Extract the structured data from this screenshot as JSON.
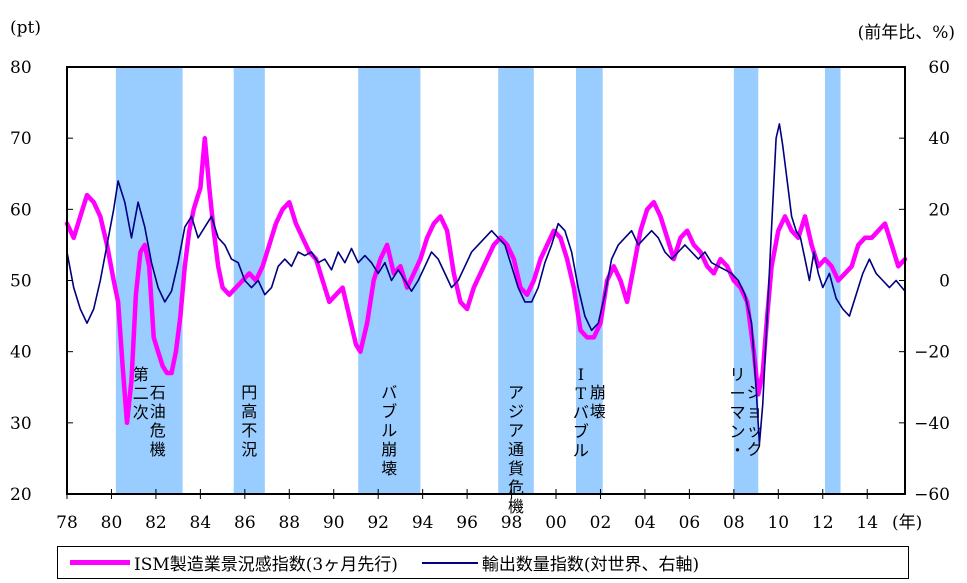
{
  "chart_data": {
    "type": "line",
    "left_unit": "(pt)",
    "right_unit": "(前年比、%)",
    "x_axis": {
      "min": 1978,
      "max": 2015.7,
      "ticks": [
        1978,
        1980,
        1982,
        1984,
        1986,
        1988,
        1990,
        1992,
        1994,
        1996,
        1998,
        2000,
        2002,
        2004,
        2006,
        2008,
        2010,
        2012,
        2014
      ],
      "tick_labels": [
        "78",
        "80",
        "82",
        "84",
        "86",
        "88",
        "90",
        "92",
        "94",
        "96",
        "98",
        "00",
        "02",
        "04",
        "06",
        "08",
        "10",
        "12",
        "14"
      ],
      "unit_label": "(年)"
    },
    "y_left": {
      "min": 20,
      "max": 80,
      "ticks": [
        20,
        30,
        40,
        50,
        60,
        70,
        80
      ],
      "tick_labels": [
        "20",
        "30",
        "40",
        "50",
        "60",
        "70",
        "80"
      ]
    },
    "y_right": {
      "min": -60,
      "max": 60,
      "ticks": [
        -60,
        -40,
        -20,
        0,
        20,
        40,
        60
      ],
      "tick_labels": [
        "−60",
        "−40",
        "−20",
        "0",
        "20",
        "40",
        "60"
      ]
    },
    "recessions": [
      {
        "start": 1980.2,
        "end": 1983.2,
        "label_lines": [
          "石油危機",
          "第二次"
        ]
      },
      {
        "start": 1985.5,
        "end": 1986.9,
        "label_lines": [
          "円高不況"
        ]
      },
      {
        "start": 1991.1,
        "end": 1993.9,
        "label_lines": [
          "バブル崩壊"
        ]
      },
      {
        "start": 1997.4,
        "end": 1999.0,
        "label_lines": [
          "アジア通貨危機"
        ]
      },
      {
        "start": 2000.9,
        "end": 2002.1,
        "label_lines": [
          "崩壊",
          "ITバブル"
        ]
      },
      {
        "start": 2008.0,
        "end": 2009.1,
        "label_lines": [
          "ショック",
          "リーマン・"
        ]
      },
      {
        "start": 2012.1,
        "end": 2012.8,
        "label_lines": []
      }
    ],
    "series": [
      {
        "name": "ISM製造業景況感指数(3ヶ月先行)",
        "axis": "left",
        "color": "#ff00ff",
        "points": [
          [
            1978.0,
            58
          ],
          [
            1978.3,
            56
          ],
          [
            1978.6,
            59
          ],
          [
            1978.9,
            62
          ],
          [
            1979.2,
            61
          ],
          [
            1979.5,
            59
          ],
          [
            1979.8,
            55
          ],
          [
            1980.1,
            50
          ],
          [
            1980.3,
            47
          ],
          [
            1980.5,
            38
          ],
          [
            1980.7,
            30
          ],
          [
            1980.9,
            36
          ],
          [
            1981.1,
            48
          ],
          [
            1981.3,
            54
          ],
          [
            1981.5,
            55
          ],
          [
            1981.7,
            52
          ],
          [
            1981.9,
            42
          ],
          [
            1982.1,
            40
          ],
          [
            1982.3,
            38
          ],
          [
            1982.5,
            37
          ],
          [
            1982.7,
            37
          ],
          [
            1982.9,
            40
          ],
          [
            1983.1,
            45
          ],
          [
            1983.3,
            52
          ],
          [
            1983.5,
            57
          ],
          [
            1983.7,
            60
          ],
          [
            1983.9,
            62
          ],
          [
            1984.0,
            63
          ],
          [
            1984.2,
            70
          ],
          [
            1984.4,
            63
          ],
          [
            1984.6,
            57
          ],
          [
            1984.8,
            52
          ],
          [
            1985.0,
            49
          ],
          [
            1985.3,
            48
          ],
          [
            1985.6,
            49
          ],
          [
            1985.9,
            50
          ],
          [
            1986.2,
            51
          ],
          [
            1986.5,
            50
          ],
          [
            1986.8,
            52
          ],
          [
            1987.1,
            55
          ],
          [
            1987.4,
            58
          ],
          [
            1987.7,
            60
          ],
          [
            1988.0,
            61
          ],
          [
            1988.3,
            58
          ],
          [
            1988.6,
            56
          ],
          [
            1988.9,
            54
          ],
          [
            1989.2,
            53
          ],
          [
            1989.5,
            50
          ],
          [
            1989.8,
            47
          ],
          [
            1990.1,
            48
          ],
          [
            1990.4,
            49
          ],
          [
            1990.7,
            45
          ],
          [
            1991.0,
            41
          ],
          [
            1991.2,
            40
          ],
          [
            1991.5,
            44
          ],
          [
            1991.8,
            50
          ],
          [
            1992.1,
            53
          ],
          [
            1992.4,
            55
          ],
          [
            1992.7,
            51
          ],
          [
            1993.0,
            52
          ],
          [
            1993.3,
            49
          ],
          [
            1993.6,
            51
          ],
          [
            1993.9,
            53
          ],
          [
            1994.2,
            56
          ],
          [
            1994.5,
            58
          ],
          [
            1994.8,
            59
          ],
          [
            1995.1,
            57
          ],
          [
            1995.4,
            51
          ],
          [
            1995.7,
            47
          ],
          [
            1996.0,
            46
          ],
          [
            1996.3,
            49
          ],
          [
            1996.6,
            51
          ],
          [
            1996.9,
            53
          ],
          [
            1997.2,
            55
          ],
          [
            1997.5,
            56
          ],
          [
            1997.8,
            55
          ],
          [
            1998.1,
            53
          ],
          [
            1998.4,
            49
          ],
          [
            1998.7,
            48
          ],
          [
            1999.0,
            50
          ],
          [
            1999.3,
            53
          ],
          [
            1999.6,
            55
          ],
          [
            1999.9,
            57
          ],
          [
            2000.2,
            56
          ],
          [
            2000.5,
            53
          ],
          [
            2000.8,
            49
          ],
          [
            2001.1,
            43
          ],
          [
            2001.4,
            42
          ],
          [
            2001.7,
            42
          ],
          [
            2002.0,
            44
          ],
          [
            2002.3,
            50
          ],
          [
            2002.6,
            52
          ],
          [
            2002.9,
            50
          ],
          [
            2003.2,
            47
          ],
          [
            2003.5,
            52
          ],
          [
            2003.8,
            57
          ],
          [
            2004.1,
            60
          ],
          [
            2004.4,
            61
          ],
          [
            2004.7,
            59
          ],
          [
            2005.0,
            56
          ],
          [
            2005.3,
            53
          ],
          [
            2005.6,
            56
          ],
          [
            2005.9,
            57
          ],
          [
            2006.2,
            55
          ],
          [
            2006.5,
            54
          ],
          [
            2006.8,
            52
          ],
          [
            2007.1,
            51
          ],
          [
            2007.4,
            53
          ],
          [
            2007.7,
            52
          ],
          [
            2008.0,
            50
          ],
          [
            2008.3,
            49
          ],
          [
            2008.6,
            47
          ],
          [
            2008.9,
            40
          ],
          [
            2009.1,
            34
          ],
          [
            2009.3,
            37
          ],
          [
            2009.5,
            45
          ],
          [
            2009.7,
            52
          ],
          [
            2010.0,
            57
          ],
          [
            2010.3,
            59
          ],
          [
            2010.6,
            57
          ],
          [
            2010.9,
            56
          ],
          [
            2011.2,
            59
          ],
          [
            2011.5,
            55
          ],
          [
            2011.8,
            52
          ],
          [
            2012.1,
            53
          ],
          [
            2012.4,
            52
          ],
          [
            2012.7,
            50
          ],
          [
            2013.0,
            51
          ],
          [
            2013.3,
            52
          ],
          [
            2013.6,
            55
          ],
          [
            2013.9,
            56
          ],
          [
            2014.2,
            56
          ],
          [
            2014.5,
            57
          ],
          [
            2014.8,
            58
          ],
          [
            2015.1,
            55
          ],
          [
            2015.4,
            52
          ],
          [
            2015.7,
            53
          ]
        ]
      },
      {
        "name": "輸出数量指数(対世界、右軸)",
        "axis": "right",
        "color": "#000080",
        "points": [
          [
            1978.0,
            8
          ],
          [
            1978.3,
            -2
          ],
          [
            1978.6,
            -8
          ],
          [
            1978.9,
            -12
          ],
          [
            1979.2,
            -8
          ],
          [
            1979.5,
            0
          ],
          [
            1979.8,
            10
          ],
          [
            1980.1,
            20
          ],
          [
            1980.3,
            28
          ],
          [
            1980.6,
            22
          ],
          [
            1980.9,
            12
          ],
          [
            1981.2,
            22
          ],
          [
            1981.5,
            15
          ],
          [
            1981.8,
            5
          ],
          [
            1982.1,
            -2
          ],
          [
            1982.4,
            -6
          ],
          [
            1982.7,
            -3
          ],
          [
            1983.0,
            5
          ],
          [
            1983.3,
            15
          ],
          [
            1983.6,
            18
          ],
          [
            1983.9,
            12
          ],
          [
            1984.2,
            15
          ],
          [
            1984.5,
            18
          ],
          [
            1984.8,
            12
          ],
          [
            1985.1,
            10
          ],
          [
            1985.4,
            6
          ],
          [
            1985.7,
            5
          ],
          [
            1986.0,
            0
          ],
          [
            1986.3,
            -2
          ],
          [
            1986.6,
            0
          ],
          [
            1986.9,
            -4
          ],
          [
            1987.2,
            -2
          ],
          [
            1987.5,
            4
          ],
          [
            1987.8,
            6
          ],
          [
            1988.1,
            4
          ],
          [
            1988.4,
            8
          ],
          [
            1988.7,
            7
          ],
          [
            1989.0,
            8
          ],
          [
            1989.3,
            5
          ],
          [
            1989.6,
            6
          ],
          [
            1989.9,
            3
          ],
          [
            1990.2,
            8
          ],
          [
            1990.5,
            5
          ],
          [
            1990.8,
            9
          ],
          [
            1991.1,
            5
          ],
          [
            1991.4,
            7
          ],
          [
            1991.7,
            5
          ],
          [
            1992.0,
            2
          ],
          [
            1992.3,
            5
          ],
          [
            1992.6,
            0
          ],
          [
            1992.9,
            3
          ],
          [
            1993.2,
            0
          ],
          [
            1993.5,
            -3
          ],
          [
            1993.8,
            0
          ],
          [
            1994.1,
            4
          ],
          [
            1994.4,
            8
          ],
          [
            1994.7,
            6
          ],
          [
            1995.0,
            2
          ],
          [
            1995.3,
            -2
          ],
          [
            1995.6,
            0
          ],
          [
            1995.9,
            4
          ],
          [
            1996.2,
            8
          ],
          [
            1996.5,
            10
          ],
          [
            1996.8,
            12
          ],
          [
            1997.1,
            14
          ],
          [
            1997.4,
            12
          ],
          [
            1997.7,
            10
          ],
          [
            1998.0,
            4
          ],
          [
            1998.3,
            -2
          ],
          [
            1998.6,
            -6
          ],
          [
            1998.9,
            -6
          ],
          [
            1999.2,
            -2
          ],
          [
            1999.5,
            5
          ],
          [
            1999.8,
            10
          ],
          [
            2000.1,
            16
          ],
          [
            2000.4,
            14
          ],
          [
            2000.7,
            8
          ],
          [
            2001.0,
            -2
          ],
          [
            2001.3,
            -10
          ],
          [
            2001.6,
            -14
          ],
          [
            2001.9,
            -12
          ],
          [
            2002.2,
            -4
          ],
          [
            2002.5,
            6
          ],
          [
            2002.8,
            10
          ],
          [
            2003.1,
            12
          ],
          [
            2003.4,
            14
          ],
          [
            2003.7,
            10
          ],
          [
            2004.0,
            12
          ],
          [
            2004.3,
            14
          ],
          [
            2004.6,
            12
          ],
          [
            2004.9,
            8
          ],
          [
            2005.2,
            6
          ],
          [
            2005.5,
            8
          ],
          [
            2005.8,
            10
          ],
          [
            2006.1,
            8
          ],
          [
            2006.4,
            6
          ],
          [
            2006.7,
            8
          ],
          [
            2007.0,
            5
          ],
          [
            2007.3,
            4
          ],
          [
            2007.6,
            3
          ],
          [
            2007.9,
            2
          ],
          [
            2008.2,
            0
          ],
          [
            2008.5,
            -4
          ],
          [
            2008.8,
            -12
          ],
          [
            2009.0,
            -30
          ],
          [
            2009.15,
            -46
          ],
          [
            2009.3,
            -35
          ],
          [
            2009.5,
            -10
          ],
          [
            2009.7,
            15
          ],
          [
            2009.9,
            40
          ],
          [
            2010.05,
            44
          ],
          [
            2010.2,
            38
          ],
          [
            2010.4,
            28
          ],
          [
            2010.6,
            18
          ],
          [
            2010.8,
            14
          ],
          [
            2011.0,
            12
          ],
          [
            2011.2,
            6
          ],
          [
            2011.4,
            0
          ],
          [
            2011.6,
            8
          ],
          [
            2011.8,
            2
          ],
          [
            2012.0,
            -2
          ],
          [
            2012.3,
            2
          ],
          [
            2012.6,
            -5
          ],
          [
            2012.9,
            -8
          ],
          [
            2013.2,
            -10
          ],
          [
            2013.5,
            -4
          ],
          [
            2013.8,
            2
          ],
          [
            2014.1,
            6
          ],
          [
            2014.4,
            2
          ],
          [
            2014.7,
            0
          ],
          [
            2015.0,
            -2
          ],
          [
            2015.3,
            0
          ],
          [
            2015.7,
            -3
          ]
        ]
      }
    ]
  }
}
